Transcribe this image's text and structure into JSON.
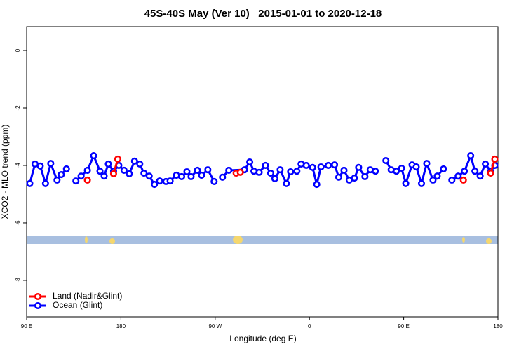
{
  "chart_data": {
    "type": "line",
    "title": "45S-40S May (Ver 10)   2015-01-01 to 2020-12-18",
    "x_label": "Longitude (deg E)",
    "y_label": "XCO2 - MLO trend (ppm)",
    "xlim": [
      90,
      540
    ],
    "ylim": [
      0.83,
      -9.27
    ],
    "xticks": [
      {
        "value": 90,
        "label": "90 E"
      },
      180,
      {
        "value": 270,
        "label": "90 W"
      },
      {
        "value": 360,
        "label": "0"
      },
      {
        "value": 450,
        "label": "90 E"
      },
      {
        "value": 540,
        "label": "180"
      }
    ],
    "yticks": [
      0,
      -2,
      -4,
      -6,
      -8
    ],
    "legend": "bottom-left",
    "series": [
      {
        "name": "Land (Nadir&Glint)",
        "color": "#ff0000",
        "x": [
          148,
          null,
          173,
          177,
          null,
          290,
          294,
          null,
          507,
          null,
          533,
          537
        ],
        "values": [
          -4.51,
          null,
          -4.29,
          -3.78,
          null,
          -4.27,
          -4.24,
          null,
          -4.51,
          null,
          -4.27,
          -3.78
        ]
      },
      {
        "name": "Ocean (Glint)",
        "color": "#0000ff",
        "x": [
          93,
          98,
          103,
          108,
          113,
          119,
          123,
          128,
          null,
          137,
          142,
          148,
          154,
          160,
          164,
          168,
          173,
          178,
          183,
          188,
          193,
          198,
          202,
          207,
          212,
          217,
          223,
          227,
          233,
          238,
          243,
          247,
          253,
          257,
          263,
          269,
          null,
          277,
          283,
          298,
          303,
          307,
          312,
          318,
          323,
          327,
          332,
          338,
          342,
          348,
          352,
          357,
          363,
          367,
          371,
          378,
          384,
          388,
          393,
          398,
          403,
          407,
          413,
          418,
          423,
          null,
          433,
          438,
          443,
          448,
          452,
          458,
          462,
          467,
          472,
          478,
          482,
          488,
          null,
          496,
          502,
          508,
          514,
          518,
          523,
          528,
          533,
          537
        ],
        "values": [
          -4.63,
          -3.95,
          -4.02,
          -4.63,
          -3.93,
          -4.51,
          -4.32,
          -4.12,
          null,
          -4.54,
          -4.37,
          -4.17,
          -3.66,
          -4.2,
          -4.37,
          -3.95,
          -4.2,
          -4.0,
          -4.17,
          -4.29,
          -3.85,
          -3.95,
          -4.27,
          -4.37,
          -4.66,
          -4.54,
          -4.56,
          -4.54,
          -4.34,
          -4.39,
          -4.22,
          -4.39,
          -4.17,
          -4.34,
          -4.15,
          -4.56,
          null,
          -4.41,
          -4.17,
          -4.15,
          -3.88,
          -4.2,
          -4.24,
          -4.0,
          -4.27,
          -4.46,
          -4.15,
          -4.63,
          -4.22,
          -4.2,
          -3.95,
          -4.0,
          -4.07,
          -4.66,
          -4.05,
          -4.0,
          -3.98,
          -4.41,
          -4.17,
          -4.51,
          -4.44,
          -4.07,
          -4.39,
          -4.15,
          -4.2,
          null,
          -3.83,
          -4.15,
          -4.2,
          -4.1,
          -4.63,
          -3.98,
          -4.05,
          -4.63,
          -3.93,
          -4.51,
          -4.37,
          -4.12,
          null,
          -4.51,
          -4.37,
          -4.2,
          -3.66,
          -4.2,
          -4.37,
          -3.95,
          -4.2,
          -4.0
        ]
      }
    ]
  }
}
